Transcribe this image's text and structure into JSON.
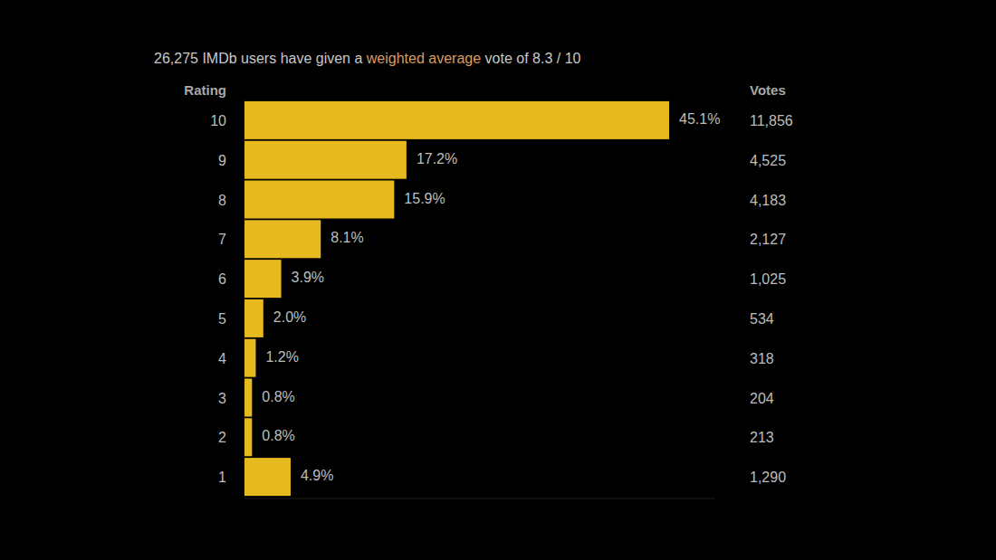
{
  "chart_data": {
    "type": "bar",
    "orientation": "horizontal",
    "title": "26,275 IMDb users have given a weighted average vote of 8.3 / 10",
    "title_link": "weighted average",
    "y_label": "Rating",
    "column_label": "Votes",
    "categories": [
      "10",
      "9",
      "8",
      "7",
      "6",
      "5",
      "4",
      "3",
      "2",
      "1"
    ],
    "values": [
      45.1,
      17.2,
      15.9,
      8.1,
      3.9,
      2.0,
      1.2,
      0.8,
      0.8,
      4.9
    ],
    "value_labels": [
      "45.1%",
      "17.2%",
      "15.9%",
      "8.1%",
      "3.9%",
      "2.0%",
      "1.2%",
      "0.8%",
      "0.8%",
      "4.9%"
    ],
    "votes": [
      11856,
      4525,
      4183,
      2127,
      1025,
      534,
      318,
      204,
      213,
      1290
    ],
    "vote_labels": [
      "11,856",
      "4,525",
      "4,183",
      "2,127",
      "1,025",
      "534",
      "318",
      "204",
      "213",
      "1,290"
    ],
    "color": "#e6b91e",
    "xlim": [
      0,
      50
    ],
    "xticks": [],
    "grid": false,
    "data_labels": true,
    "tick_labels": "y"
  }
}
